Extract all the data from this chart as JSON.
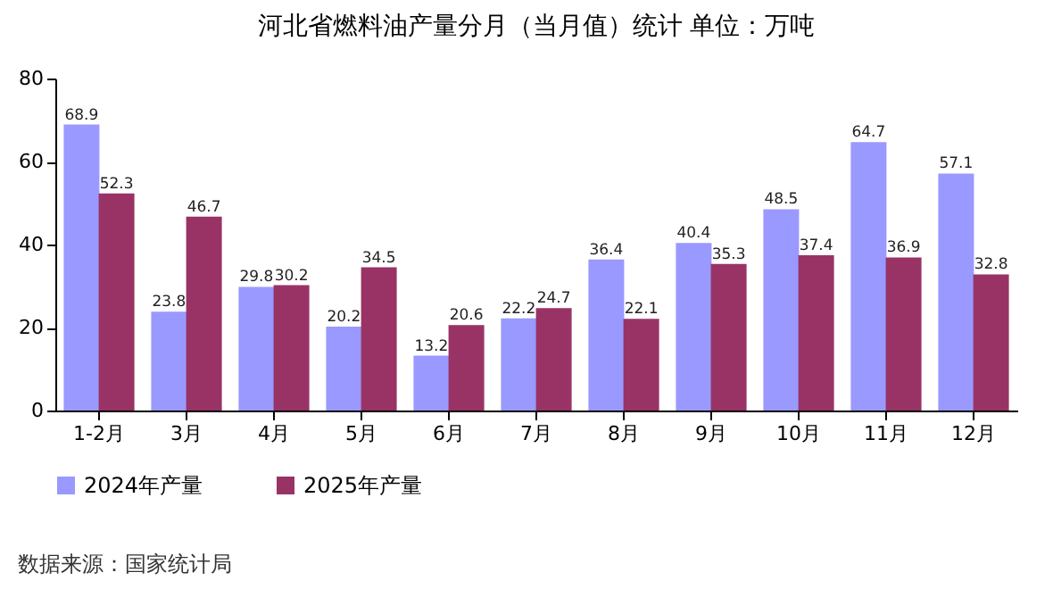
{
  "chart_data": {
    "type": "bar",
    "title": "河北省燃料油产量分月（当月值）统计  单位：万吨",
    "categories": [
      "1-2月",
      "3月",
      "4月",
      "5月",
      "6月",
      "7月",
      "8月",
      "9月",
      "10月",
      "11月",
      "12月"
    ],
    "series": [
      {
        "name": "2024年产量",
        "color": "#9999ff",
        "values": [
          68.9,
          23.8,
          29.8,
          20.2,
          13.2,
          22.2,
          36.4,
          40.4,
          48.5,
          64.7,
          57.1
        ]
      },
      {
        "name": "2025年产量",
        "color": "#993366",
        "values": [
          52.3,
          46.7,
          30.2,
          34.5,
          20.6,
          24.7,
          22.1,
          35.3,
          37.4,
          36.9,
          32.8
        ]
      }
    ],
    "ylim": [
      0,
      80
    ],
    "yticks": [
      0,
      20,
      40,
      60,
      80
    ],
    "grid": false,
    "legend": "bottom",
    "data_labels": true,
    "annotations": [
      "数据来源：国家统计局"
    ]
  }
}
